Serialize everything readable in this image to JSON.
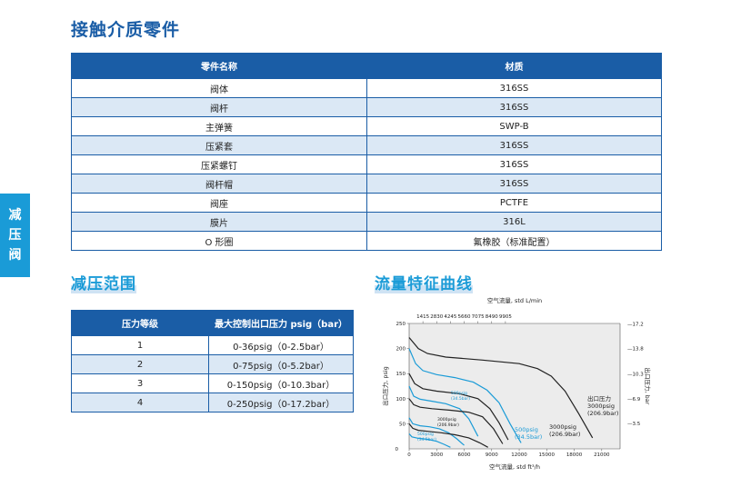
{
  "section_title": "接触介质零件",
  "side_tab": [
    "减",
    "压",
    "阀"
  ],
  "parts_table": {
    "headers": [
      "零件名称",
      "材质"
    ],
    "rows": [
      [
        "阀体",
        "316SS"
      ],
      [
        "阀杆",
        "316SS"
      ],
      [
        "主弹簧",
        "SWP-B"
      ],
      [
        "压紧套",
        "316SS"
      ],
      [
        "压紧螺钉",
        "316SS"
      ],
      [
        "阀杆帽",
        "316SS"
      ],
      [
        "阀座",
        "PCTFE"
      ],
      [
        "膜片",
        "316L"
      ],
      [
        "O 形圈",
        "氟橡胶（标准配置）"
      ]
    ]
  },
  "range_title": "减压范围",
  "range_table": {
    "headers": [
      "压力等级",
      "最大控制出口压力 psig（bar）"
    ],
    "rows": [
      [
        "1",
        "0-36psig（0-2.5bar）"
      ],
      [
        "2",
        "0-75psig（0-5.2bar）"
      ],
      [
        "3",
        "0-150psig（0-10.3bar）"
      ],
      [
        "4",
        "0-250psig（0-17.2bar）"
      ]
    ]
  },
  "chart_title": "流量特征曲线",
  "chart_data": {
    "type": "line",
    "top_axis_label": "空气流量, std L/min",
    "top_ticks": [
      "1415",
      "2830",
      "4245",
      "5660",
      "7075",
      "8490",
      "9905"
    ],
    "xlabel": "空气流量, std ft³/h",
    "x_ticks": [
      0,
      3000,
      6000,
      9000,
      12000,
      15000,
      18000,
      21000
    ],
    "xlim": [
      0,
      23000
    ],
    "ylabel_left": "出口压力, psig",
    "y_ticks_left": [
      50,
      100,
      150,
      200,
      250
    ],
    "ylim": [
      0,
      250
    ],
    "ylabel_right": "出口压力, bar",
    "y_ticks_right": [
      "3.5",
      "6.9",
      "10.3",
      "13.8",
      "17.2"
    ],
    "annotations": [
      {
        "text": "出口压力",
        "color": "#222222"
      },
      {
        "text": "3000psig",
        "color": "#222222"
      },
      {
        "text": "(206.9bar)",
        "color": "#222222"
      },
      {
        "text": "500psig",
        "color": "#1a9bd7"
      },
      {
        "text": "(34.5bar)",
        "color": "#1a9bd7"
      },
      {
        "text": "3000psig",
        "color": "#222222"
      },
      {
        "text": "(206.9bar)",
        "color": "#222222"
      },
      {
        "text": "500psig",
        "color": "#1a9bd7"
      },
      {
        "text": "(34.5bar)",
        "color": "#1a9bd7"
      },
      {
        "text": "3000psig",
        "color": "#222222"
      },
      {
        "text": "(206.9bar)",
        "color": "#222222"
      },
      {
        "text": "500psig",
        "color": "#1a9bd7"
      },
      {
        "text": "(34.5bar)",
        "color": "#1a9bd7"
      }
    ],
    "series": [
      {
        "color": "#222222",
        "x": [
          0,
          1000,
          2000,
          4000,
          8000,
          12000,
          14000,
          15500,
          17000,
          18500,
          20000
        ],
        "y": [
          222,
          200,
          190,
          183,
          177,
          170,
          160,
          145,
          115,
          70,
          22
        ]
      },
      {
        "color": "#1a9bd7",
        "x": [
          0,
          700,
          1500,
          3000,
          5000,
          7000,
          8500,
          9800,
          11000,
          12200
        ],
        "y": [
          200,
          170,
          156,
          148,
          142,
          133,
          117,
          92,
          50,
          12
        ]
      },
      {
        "color": "#222222",
        "x": [
          0,
          600,
          1500,
          3000,
          5500,
          7500,
          8800,
          9800,
          10800
        ],
        "y": [
          150,
          130,
          120,
          115,
          110,
          100,
          80,
          52,
          18
        ]
      },
      {
        "color": "#1a9bd7",
        "x": [
          0,
          500,
          1200,
          2500,
          4000,
          5500,
          6500,
          7500
        ],
        "y": [
          125,
          105,
          99,
          95,
          90,
          80,
          60,
          25
        ]
      },
      {
        "color": "#222222",
        "x": [
          0,
          500,
          1200,
          2500,
          4500,
          6500,
          8000,
          9200,
          10200
        ],
        "y": [
          100,
          88,
          83,
          80,
          77,
          73,
          64,
          40,
          10
        ]
      },
      {
        "color": "#1a9bd7",
        "x": [
          0,
          400,
          1200,
          2200,
          3300,
          4300,
          5200,
          6000
        ],
        "y": [
          62,
          50,
          46,
          44,
          40,
          32,
          20,
          7
        ]
      },
      {
        "color": "#222222",
        "x": [
          0,
          400,
          1000,
          2000,
          3500,
          5000,
          6500,
          7700,
          8600
        ],
        "y": [
          50,
          41,
          37,
          35,
          32,
          28,
          22,
          12,
          3
        ]
      },
      {
        "color": "#1a9bd7",
        "x": [
          0,
          300,
          1000,
          2000,
          3000,
          3800,
          4500
        ],
        "y": [
          30,
          24,
          21,
          19,
          15,
          9,
          3
        ]
      }
    ]
  }
}
